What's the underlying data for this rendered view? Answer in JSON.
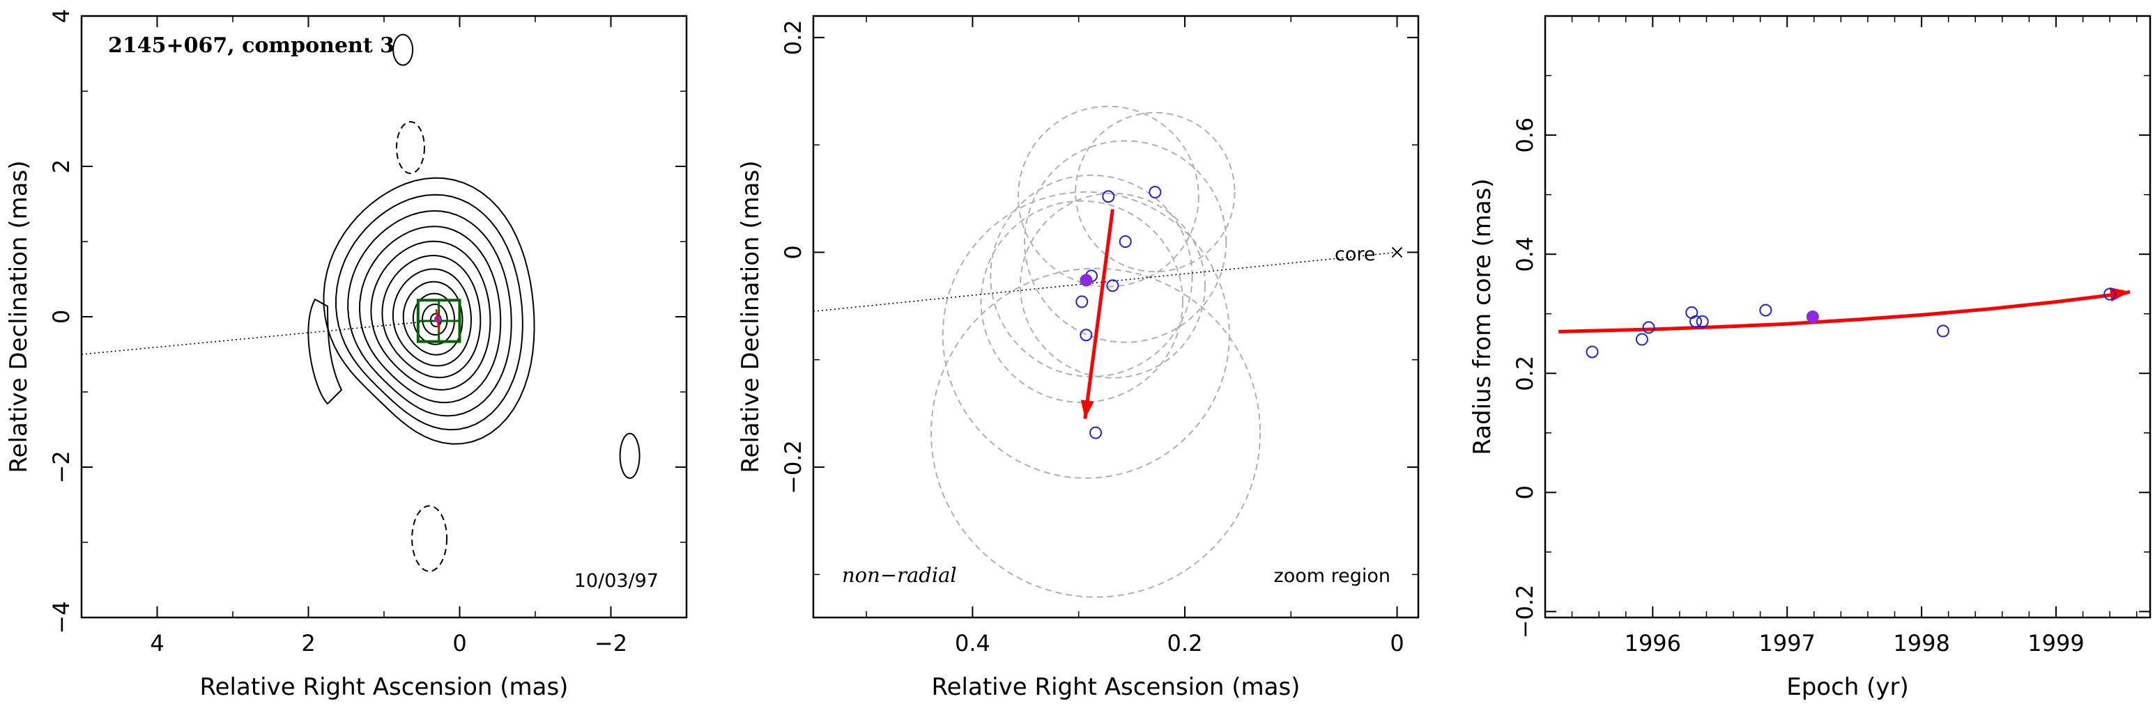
{
  "colors": {
    "frame": "#000000",
    "contour": "#000000",
    "data_point": "#1f1fe6",
    "highlight_point": "#8a2be2",
    "trend_arrow": "#ff0000",
    "zoom_box": "#006400",
    "circle": "#b0b0b0"
  },
  "chart_data": [
    {
      "type": "contour",
      "title": "2145+067, component 3",
      "xlabel": "Relative Right Ascension (mas)",
      "ylabel": "Relative Declination (mas)",
      "xlim": [
        5,
        -3
      ],
      "ylim": [
        -4,
        4
      ],
      "xticks": [
        "4",
        "2",
        "0",
        "−2"
      ],
      "xtick_values": [
        4,
        2,
        0,
        -2
      ],
      "yticks": [
        "−4",
        "−2",
        "0",
        "2",
        "4"
      ],
      "ytick_values": [
        -4,
        -2,
        0,
        2,
        4
      ],
      "annotation": "10/03/97",
      "center": [
        0.3,
        -0.05
      ],
      "contour_levels": 11,
      "dotted_line": [
        [
          5,
          -0.5
        ],
        [
          0.3,
          -0.05
        ]
      ],
      "zoom_box": {
        "x": [
          0.0,
          0.55
        ],
        "y": [
          -0.33,
          0.22
        ]
      },
      "component_position": [
        0.29,
        -0.03
      ]
    },
    {
      "type": "scatter",
      "xlabel": "Relative Right Ascension (mas)",
      "ylabel": "Relative Declination (mas)",
      "xlim": [
        0.55,
        -0.02
      ],
      "ylim": [
        -0.34,
        0.22
      ],
      "xticks": [
        "0.4",
        "0.2",
        "0"
      ],
      "xtick_values": [
        0.4,
        0.2,
        0
      ],
      "yticks": [
        "−0.2",
        "0",
        "0.2"
      ],
      "ytick_values": [
        -0.2,
        0,
        0.2
      ],
      "left_annotation": "non−radial",
      "right_annotation": "zoom region",
      "core_label": "core",
      "core_position": [
        0.0,
        0.0
      ],
      "points": [
        {
          "x": 0.272,
          "y": 0.052
        },
        {
          "x": 0.228,
          "y": 0.056
        },
        {
          "x": 0.256,
          "y": 0.01
        },
        {
          "x": 0.288,
          "y": -0.022
        },
        {
          "x": 0.268,
          "y": -0.031
        },
        {
          "x": 0.297,
          "y": -0.046
        },
        {
          "x": 0.293,
          "y": -0.077
        },
        {
          "x": 0.284,
          "y": -0.168
        }
      ],
      "highlight_point": {
        "x": 0.293,
        "y": -0.026
      },
      "circles": [
        {
          "x": 0.272,
          "y": 0.052,
          "r": 0.085
        },
        {
          "x": 0.228,
          "y": 0.056,
          "r": 0.075
        },
        {
          "x": 0.256,
          "y": 0.01,
          "r": 0.095
        },
        {
          "x": 0.288,
          "y": -0.022,
          "r": 0.095
        },
        {
          "x": 0.268,
          "y": -0.031,
          "r": 0.087
        },
        {
          "x": 0.297,
          "y": -0.046,
          "r": 0.095
        },
        {
          "x": 0.293,
          "y": -0.077,
          "r": 0.135
        },
        {
          "x": 0.284,
          "y": -0.168,
          "r": 0.155
        }
      ],
      "arrow": {
        "from": [
          0.268,
          0.04
        ],
        "to": [
          0.294,
          -0.155
        ]
      }
    },
    {
      "type": "scatter",
      "xlabel": "Epoch (yr)",
      "ylabel": "Radius from core (mas)",
      "xlim": [
        1995.2,
        1999.7
      ],
      "ylim": [
        -0.21,
        0.8
      ],
      "xticks": [
        "1996",
        "1997",
        "1998",
        "1999"
      ],
      "xtick_values": [
        1996,
        1997,
        1998,
        1999
      ],
      "yticks": [
        "−0.2",
        "0",
        "0.2",
        "0.4",
        "0.6"
      ],
      "ytick_values": [
        -0.2,
        0,
        0.2,
        0.4,
        0.6
      ],
      "points": [
        {
          "x": 1995.55,
          "y": 0.236
        },
        {
          "x": 1995.92,
          "y": 0.257
        },
        {
          "x": 1995.97,
          "y": 0.277
        },
        {
          "x": 1996.29,
          "y": 0.302
        },
        {
          "x": 1996.32,
          "y": 0.287
        },
        {
          "x": 1996.37,
          "y": 0.287
        },
        {
          "x": 1996.84,
          "y": 0.306
        },
        {
          "x": 1998.16,
          "y": 0.271
        },
        {
          "x": 1999.4,
          "y": 0.333
        }
      ],
      "highlight_point": {
        "x": 1997.19,
        "y": 0.295
      },
      "trend": {
        "x": [
          1995.3,
          1996.0,
          1996.5,
          1997.0,
          1997.5,
          1998.0,
          1998.5,
          1999.0,
          1999.5
        ],
        "y": [
          0.27,
          0.274,
          0.278,
          0.283,
          0.29,
          0.298,
          0.308,
          0.32,
          0.334
        ]
      },
      "arrow_end": [
        1999.55,
        0.337
      ]
    }
  ]
}
